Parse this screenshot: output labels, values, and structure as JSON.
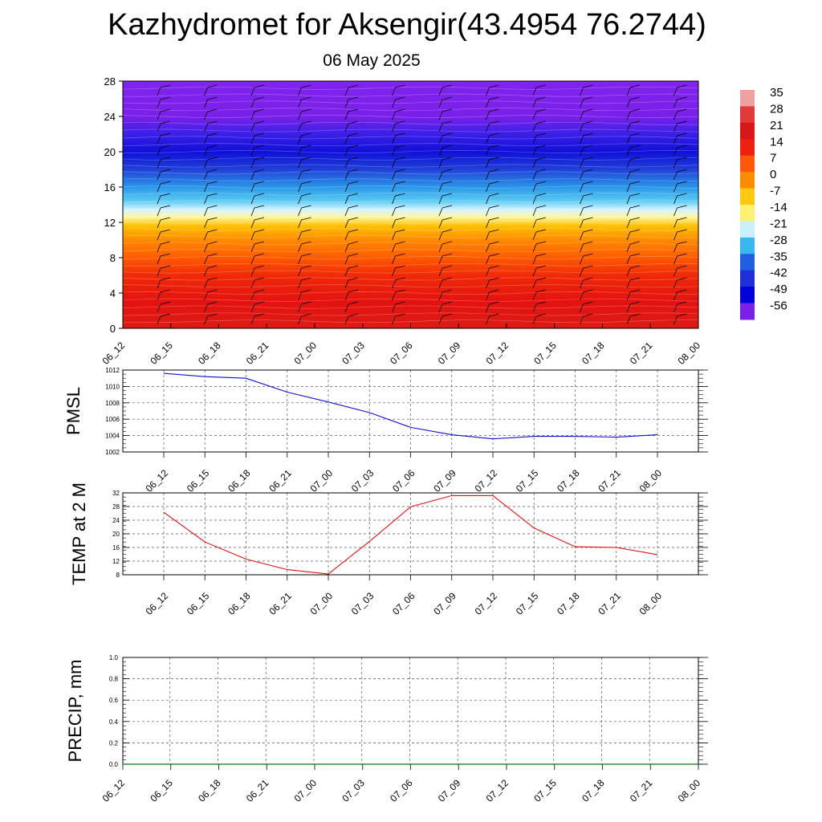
{
  "title": "Kazhydromet for Aksengir(43.4954 76.2744)",
  "subtitle": "06 May 2025",
  "chart_data": [
    {
      "type": "heatmap",
      "name": "temperature-cross-section",
      "x_categories": [
        "06_12",
        "06_15",
        "06_18",
        "06_21",
        "07_00",
        "07_03",
        "07_06",
        "07_09",
        "07_12",
        "07_15",
        "07_18",
        "07_21",
        "08_00"
      ],
      "y_ticks": [
        0,
        4,
        8,
        12,
        16,
        20,
        24,
        28
      ],
      "ylim": [
        0,
        28
      ],
      "overlay": "wind-barbs",
      "colorbar": {
        "labels": [
          "35",
          "28",
          "21",
          "14",
          "7",
          "0",
          "-7",
          "-14",
          "-21",
          "-28",
          "-35",
          "-42",
          "-49",
          "-56"
        ],
        "colors": [
          "#f0a0a0",
          "#e03a3a",
          "#d81818",
          "#ee2010",
          "#fe5808",
          "#ff8c00",
          "#ffc810",
          "#fff070",
          "#c8f0ff",
          "#38b8f0",
          "#2060e0",
          "#2030d8",
          "#0000d8",
          "#7a20e8"
        ]
      }
    },
    {
      "type": "line",
      "name": "pmsl",
      "ylabel": "PMSL",
      "x": [
        "06_12",
        "06_15",
        "06_18",
        "06_21",
        "07_00",
        "07_03",
        "07_06",
        "07_09",
        "07_12",
        "07_15",
        "07_18",
        "07_21",
        "08_00"
      ],
      "y_ticks": [
        1002,
        1004,
        1006,
        1008,
        1010,
        1012
      ],
      "ylim": [
        1002,
        1012
      ],
      "series": [
        {
          "values": [
            1011.6,
            1011.2,
            1011.0,
            1009.3,
            1008.1,
            1006.8,
            1005.0,
            1004.1,
            1003.6,
            1003.9,
            1003.9,
            1003.8,
            1004.1
          ],
          "color": "#1010d0"
        }
      ]
    },
    {
      "type": "line",
      "name": "temp-2m",
      "ylabel": "TEMP at 2 M",
      "x": [
        "06_12",
        "06_15",
        "06_18",
        "06_21",
        "07_00",
        "07_03",
        "07_06",
        "07_09",
        "07_12",
        "07_15",
        "07_18",
        "07_21",
        "08_00"
      ],
      "y_ticks": [
        8,
        12,
        16,
        20,
        24,
        28,
        32
      ],
      "ylim": [
        8,
        32
      ],
      "series": [
        {
          "values": [
            26.3,
            17.6,
            12.6,
            9.5,
            8.2,
            17.8,
            27.9,
            31.2,
            31.2,
            21.7,
            16.2,
            16.0,
            13.9
          ],
          "color": "#e01010"
        }
      ]
    },
    {
      "type": "line",
      "name": "precip",
      "ylabel": "PRECIP, mm",
      "x": [
        "06_12",
        "06_15",
        "06_18",
        "06_21",
        "07_00",
        "07_03",
        "07_06",
        "07_09",
        "07_12",
        "07_15",
        "07_18",
        "07_21",
        "08_00"
      ],
      "y_ticks": [
        "0.0",
        "0.2",
        "0.4",
        "0.6",
        "0.8",
        "1.0"
      ],
      "ylim": [
        0,
        1
      ],
      "series": [
        {
          "values": [
            0,
            0,
            0,
            0,
            0,
            0,
            0,
            0,
            0,
            0,
            0,
            0,
            0
          ],
          "color": "#008000"
        }
      ]
    }
  ]
}
